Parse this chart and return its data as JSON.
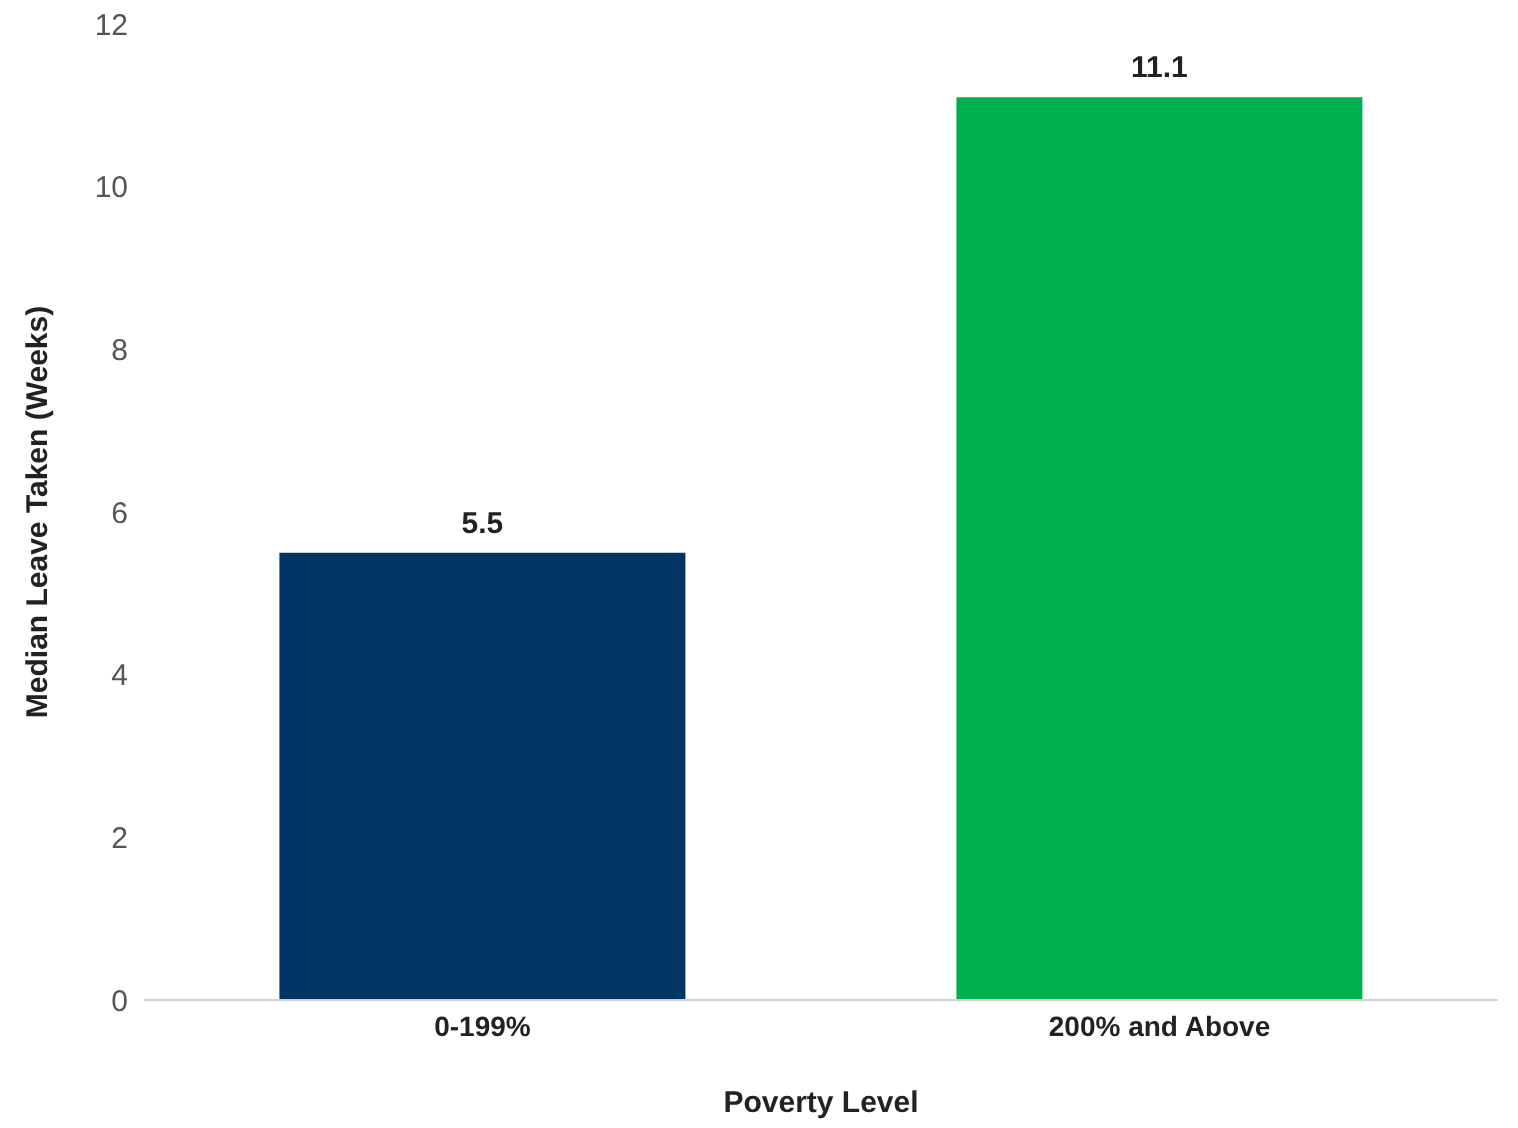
{
  "chart_data": {
    "type": "bar",
    "xlabel": "Poverty Level",
    "ylabel": "Median Leave Taken (Weeks)",
    "categories": [
      "0-199%",
      "200% and Above"
    ],
    "values": [
      5.5,
      11.1
    ],
    "colors": [
      "#003462",
      "#00b050"
    ],
    "ylim": [
      0,
      12
    ],
    "yticks": [
      0,
      2,
      4,
      6,
      8,
      10,
      12
    ],
    "grid": false,
    "data_labels": true
  }
}
